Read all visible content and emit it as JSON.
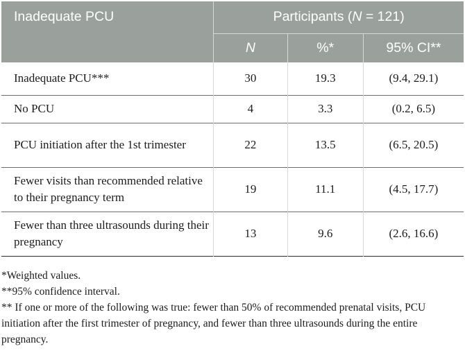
{
  "table": {
    "header": {
      "row_label": "Inadequate PCU",
      "group_label_prefix": "Participants (",
      "group_label_italic": "N",
      "group_label_suffix": " = 121)",
      "col_n": "N",
      "col_pct": "%*",
      "col_ci": "95% CI**"
    },
    "rows": [
      {
        "label": "Inadequate PCU***",
        "n": "30",
        "pct": "19.3",
        "ci": "(9.4, 29.1)"
      },
      {
        "label": "No PCU",
        "n": "4",
        "pct": "3.3",
        "ci": "(0.2, 6.5)"
      },
      {
        "label": "PCU initiation after the 1st trimester",
        "n": "22",
        "pct": "13.5",
        "ci": "(6.5, 20.5)"
      },
      {
        "label": "Fewer visits than recommended relative to their pregnancy term",
        "n": "19",
        "pct": "11.1",
        "ci": "(4.5, 17.7)"
      },
      {
        "label": "Fewer than three ultrasounds during their pregnancy",
        "n": "13",
        "pct": "9.6",
        "ci": "(2.6, 16.6)"
      }
    ]
  },
  "notes": [
    "*Weighted values.",
    "**95% confidence interval.",
    "** If one or more of the following was true: fewer than 50% of recommended prenatal visits, PCU initiation after the first trimester of pregnancy, and fewer than three ultrasounds during the entire pregnancy."
  ]
}
